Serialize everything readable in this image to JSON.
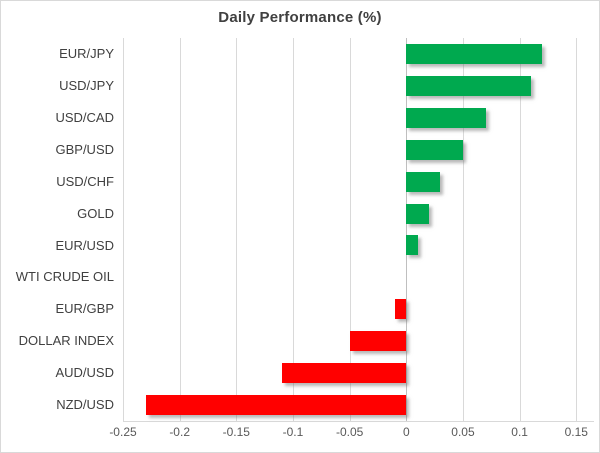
{
  "header": {
    "title": "Daily Performance (%)"
  },
  "chart_data": {
    "type": "bar",
    "orientation": "horizontal",
    "title": "Daily Performance (%)",
    "categories": [
      "EUR/JPY",
      "USD/JPY",
      "USD/CAD",
      "GBP/USD",
      "USD/CHF",
      "GOLD",
      "EUR/USD",
      "WTI CRUDE OIL",
      "EUR/GBP",
      "DOLLAR INDEX",
      "AUD/USD",
      "NZD/USD"
    ],
    "values": [
      0.12,
      0.11,
      0.07,
      0.05,
      0.03,
      0.02,
      0.01,
      0.0,
      -0.01,
      -0.05,
      -0.11,
      -0.23
    ],
    "xlim": [
      -0.25,
      0.15
    ],
    "xticks": [
      -0.25,
      -0.2,
      -0.15,
      -0.1,
      -0.05,
      0,
      0.05,
      0.1,
      0.15
    ],
    "xtick_labels": [
      "-0.25",
      "-0.2",
      "-0.15",
      "-0.1",
      "-0.05",
      "0",
      "0.05",
      "0.1",
      "0.15"
    ],
    "grid": "vertical-gridlines-on",
    "legend": "none",
    "colors": {
      "positive_bar": "#00a94f",
      "negative_bar": "#ff0000",
      "gridline": "#d9d9d9",
      "zero_axis_line": "#bfbfbf",
      "title_text": "#404040",
      "category_text": "#404040",
      "tick_text": "#595959",
      "background": "#ffffff",
      "frame_border": "#d9d9d9"
    }
  }
}
